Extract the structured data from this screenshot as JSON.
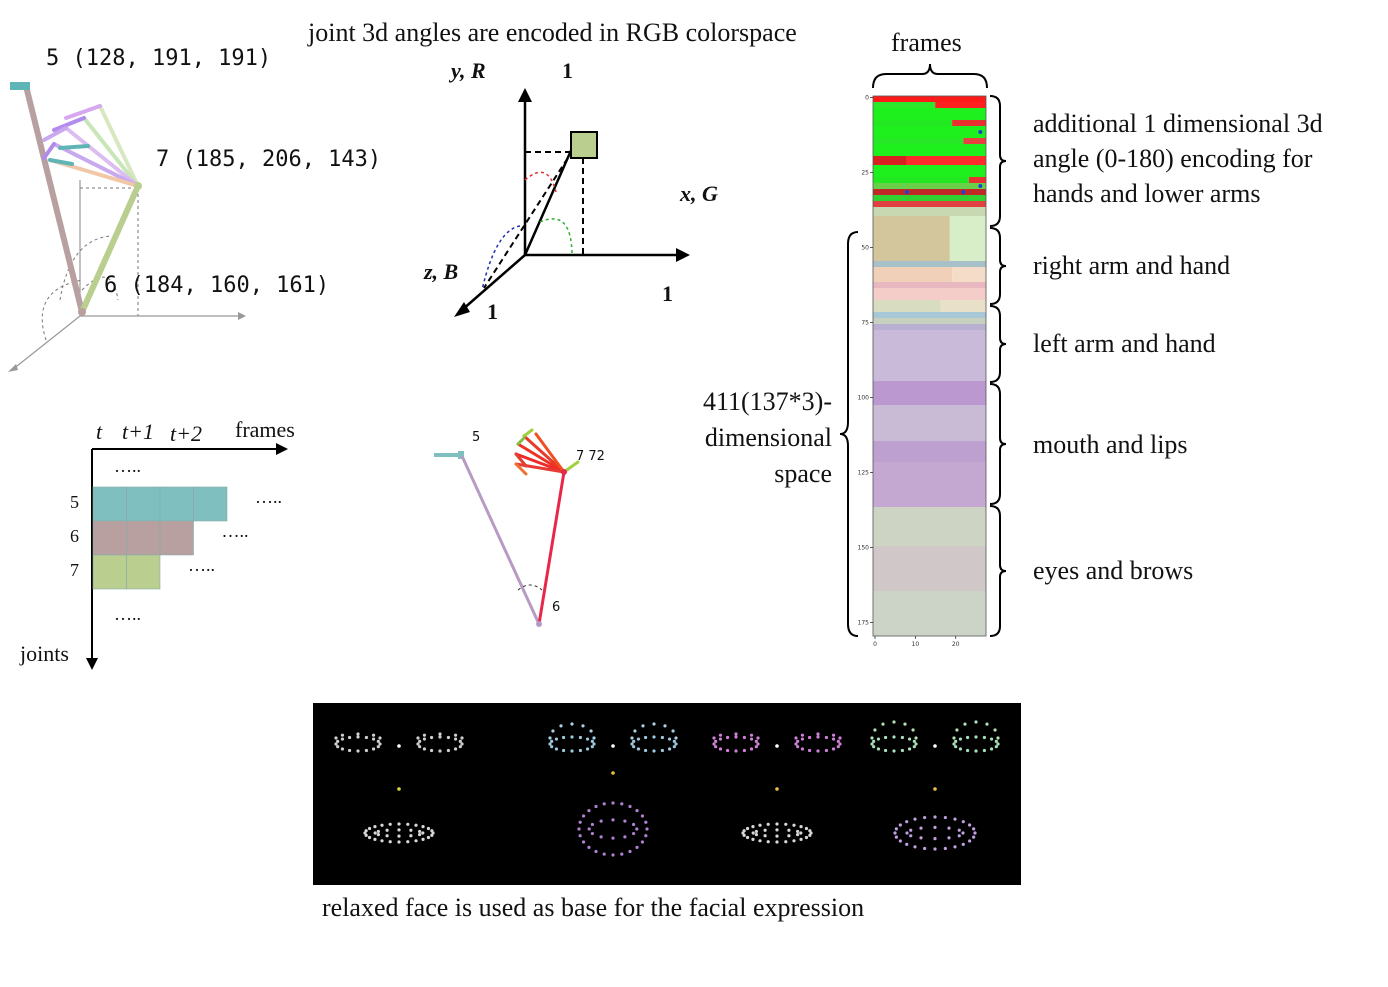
{
  "header": {
    "rgb_title": "joint 3d angles are encoded in RGB colorspace",
    "frames_top": "frames"
  },
  "skeleton": {
    "joint5": "5 (128, 191, 191)",
    "joint7": "7 (185, 206, 143)",
    "joint6": "6 (184, 160, 161)",
    "colors": {
      "joint5": "#80bfbf",
      "joint7": "#b9ce8f",
      "joint6": "#b8a0a1"
    }
  },
  "axes3d": {
    "y_label": "y, R",
    "x_label": "x, G",
    "z_label": "z, B",
    "y_one": "1",
    "x_one": "1",
    "z_one": "1",
    "cube_color": "#b9ce8f"
  },
  "grid": {
    "t": "t",
    "t1": "t+1",
    "t2": "t+2",
    "frames": "frames",
    "joints": "joints",
    "dots_top": "…..",
    "dots_bottom": "…..",
    "rows": [
      {
        "label": "5",
        "cells": 4,
        "color": "#80bfbf",
        "dots": "….."
      },
      {
        "label": "6",
        "cells": 3,
        "color": "#b8a0a1",
        "dots": "….."
      },
      {
        "label": "7",
        "cells": 2,
        "color": "#b9ce8f",
        "dots": "….."
      }
    ]
  },
  "skeleton2": {
    "label5": "5",
    "label7": "7 72",
    "label6": "6"
  },
  "heatmap": {
    "dimension_label": [
      "411(137*3)-",
      "dimensional",
      "space"
    ],
    "y_ticks": [
      "0",
      "25",
      "50",
      "75",
      "100",
      "125",
      "150",
      "175"
    ],
    "x_ticks": [
      "0",
      "10",
      "20"
    ],
    "sections": [
      {
        "label": [
          "additional 1 dimensional 3d",
          "angle (0-180) encoding for",
          "hands and lower arms"
        ]
      },
      {
        "label": [
          "right arm and hand"
        ]
      },
      {
        "label": [
          "left arm and hand"
        ]
      },
      {
        "label": [
          "mouth and lips"
        ]
      },
      {
        "label": [
          "eyes and brows"
        ]
      }
    ]
  },
  "faces": {
    "caption": "relaxed face is used as base for the facial expression"
  }
}
